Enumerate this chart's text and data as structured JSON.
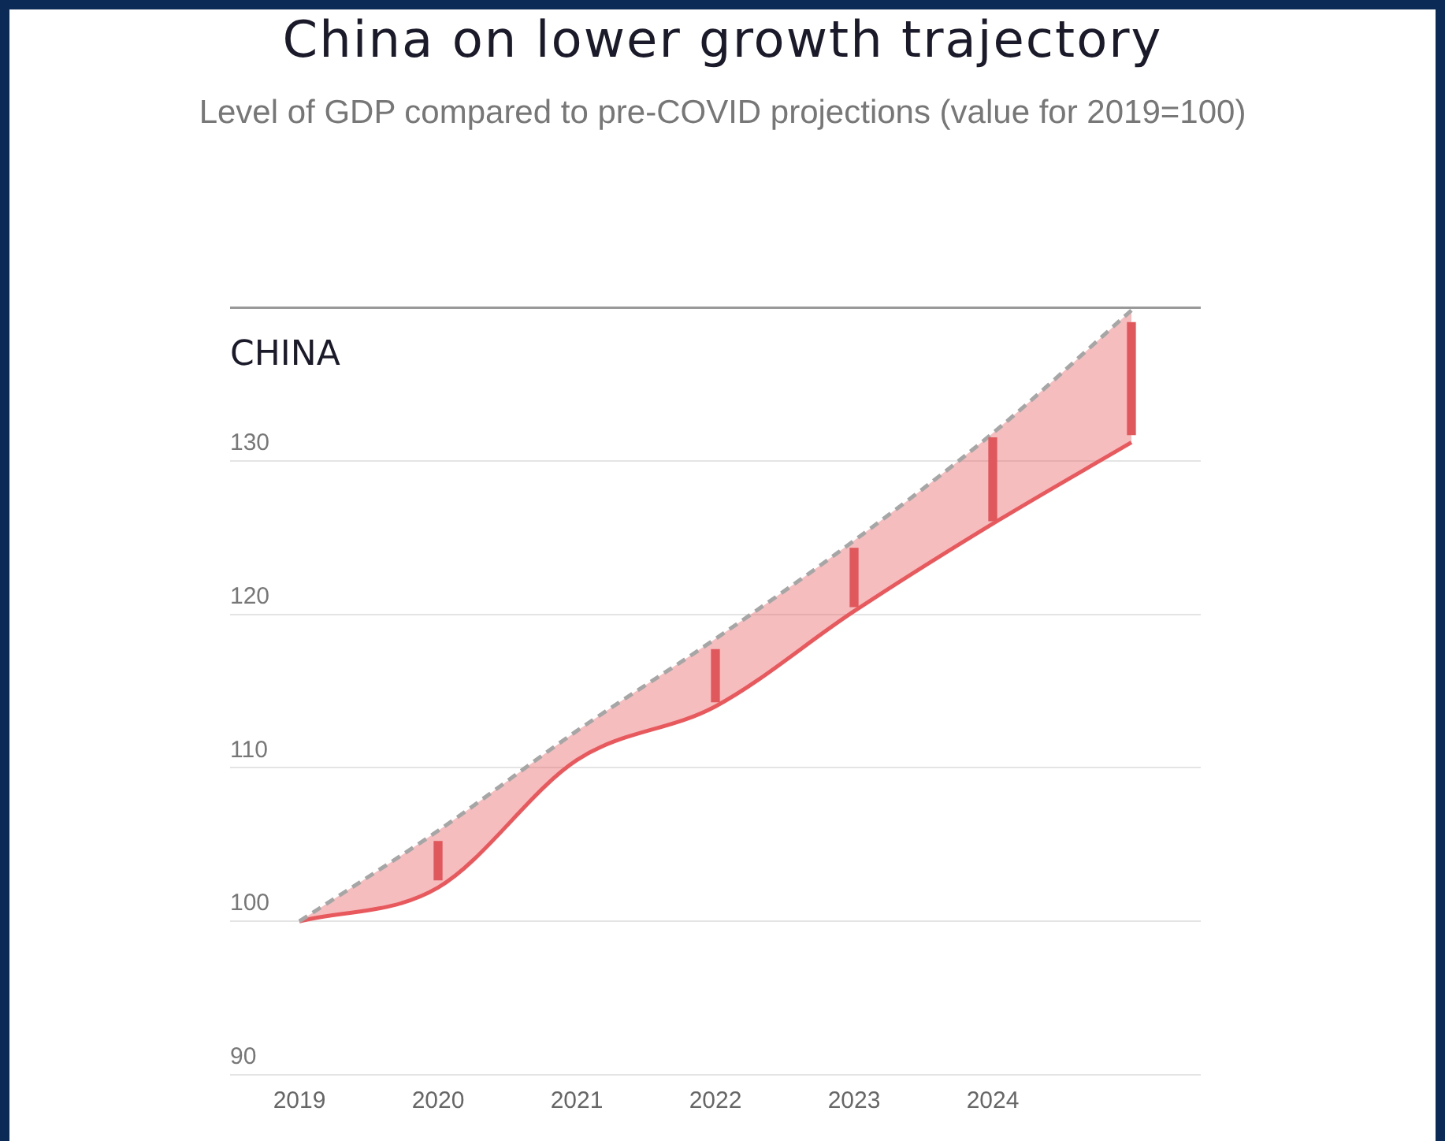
{
  "chart_data": {
    "type": "line",
    "title": "China on lower growth trajectory",
    "subtitle": "Level of GDP compared to pre-COVID projections (value for 2019=100)",
    "annotations": [
      "CHINA"
    ],
    "categories": [
      "2019",
      "2020",
      "2021",
      "2022",
      "2023",
      "2024",
      null
    ],
    "ylim": [
      90,
      140
    ],
    "yticks": [
      90,
      100,
      110,
      120,
      130,
      {
        "value": 140,
        "label": null
      }
    ],
    "grid": "y",
    "marker": "none",
    "series": [
      {
        "line_style": "dashed",
        "color": "#a6a6a6",
        "values": [
          100,
          105.9,
          112.4,
          118.4,
          124.8,
          131.8,
          139.8
        ]
      },
      {
        "line_style": "solid",
        "color": "#e8595d",
        "values": [
          100,
          102.2,
          110.5,
          114.0,
          120.2,
          125.9,
          131.2
        ],
        "lower": [
          100,
          102.2,
          110.5,
          114.0,
          120.2,
          125.9,
          131.2
        ],
        "upper": [
          100,
          105.9,
          112.4,
          118.4,
          124.8,
          131.8,
          139.8
        ]
      },
      {
        "type": "bar",
        "color": "#e0585c",
        "base": [
          null,
          102.7,
          null,
          114.3,
          120.5,
          126.1,
          131.7
        ],
        "values": [
          null,
          2.5,
          null,
          3.4,
          3.8,
          5.4,
          7.3
        ]
      }
    ]
  }
}
